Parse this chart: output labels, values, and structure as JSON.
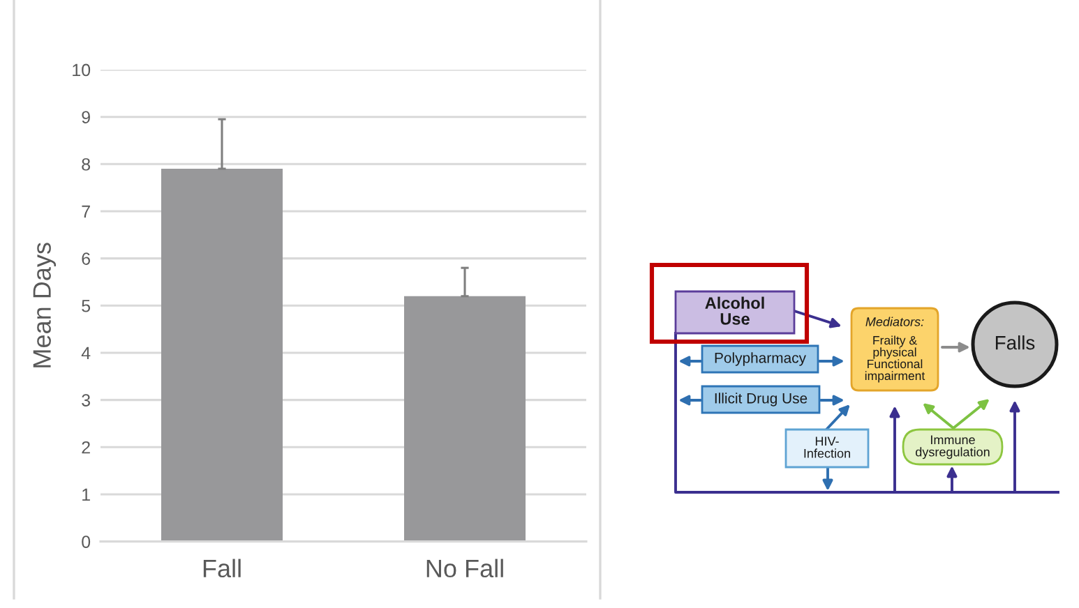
{
  "chart_data": [
    {
      "type": "bar",
      "ylabel": "Mean Days",
      "categories": [
        "Fall",
        "No Fall"
      ],
      "values": [
        7.9,
        5.2
      ],
      "errors": [
        [
          7.9,
          8.95
        ],
        [
          5.2,
          5.8
        ]
      ],
      "color": "#98989a",
      "ylim": [
        0,
        10
      ],
      "yticks": [
        0,
        1,
        2,
        3,
        4,
        5,
        6,
        7,
        8,
        9,
        10
      ],
      "grid": "y"
    },
    {
      "type": "other",
      "annotations": [
        "Alcohol\nUse",
        "Polypharmacy",
        "Illicit Drug Use",
        "Mediators:",
        "Frailty &\nphysical\nFunctional\nimpairment",
        "Falls",
        "HIV-\nInfection",
        "Immune\ndysregulation"
      ]
    }
  ]
}
